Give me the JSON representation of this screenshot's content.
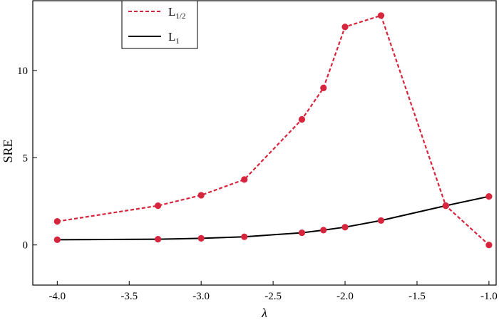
{
  "chart_data": {
    "type": "line",
    "xlabel": "λ",
    "ylabel": "SRE",
    "xlim": [
      -4.17,
      -0.95
    ],
    "ylim": [
      -2.3,
      14.0
    ],
    "grid": false,
    "legend_position": "top-left",
    "x_ticks": [
      {
        "value": -4.0,
        "label": "-4.0"
      },
      {
        "value": -3.5,
        "label": "-3.5"
      },
      {
        "value": -3.0,
        "label": "-3.0"
      },
      {
        "value": -2.5,
        "label": "-2.5"
      },
      {
        "value": -2.0,
        "label": "-2.0"
      },
      {
        "value": -1.5,
        "label": "-1.5"
      },
      {
        "value": -1.0,
        "label": "-1.0"
      }
    ],
    "y_ticks": [
      {
        "value": 0,
        "label": "0"
      },
      {
        "value": 5,
        "label": "5"
      },
      {
        "value": 10,
        "label": "10"
      }
    ],
    "series": [
      {
        "name": "L",
        "name_sub": "1/2",
        "line_style": "dashed",
        "line_color": "#d6253c",
        "marker_color": "#d6253c",
        "x": [
          -4.0,
          -3.3,
          -3.0,
          -2.7,
          -2.3,
          -2.15,
          -2.0,
          -1.75,
          -1.3,
          -1.0
        ],
        "y": [
          1.35,
          2.25,
          2.85,
          3.75,
          7.2,
          9.0,
          12.5,
          13.15,
          2.25,
          0.0
        ]
      },
      {
        "name": "L",
        "name_sub": "1",
        "line_style": "solid",
        "line_color": "#000000",
        "marker_color": "#d6253c",
        "x": [
          -4.0,
          -3.3,
          -3.0,
          -2.7,
          -2.3,
          -2.15,
          -2.0,
          -1.75,
          -1.3,
          -1.0
        ],
        "y": [
          0.3,
          0.33,
          0.38,
          0.47,
          0.7,
          0.85,
          1.02,
          1.4,
          2.25,
          2.78
        ]
      }
    ]
  }
}
